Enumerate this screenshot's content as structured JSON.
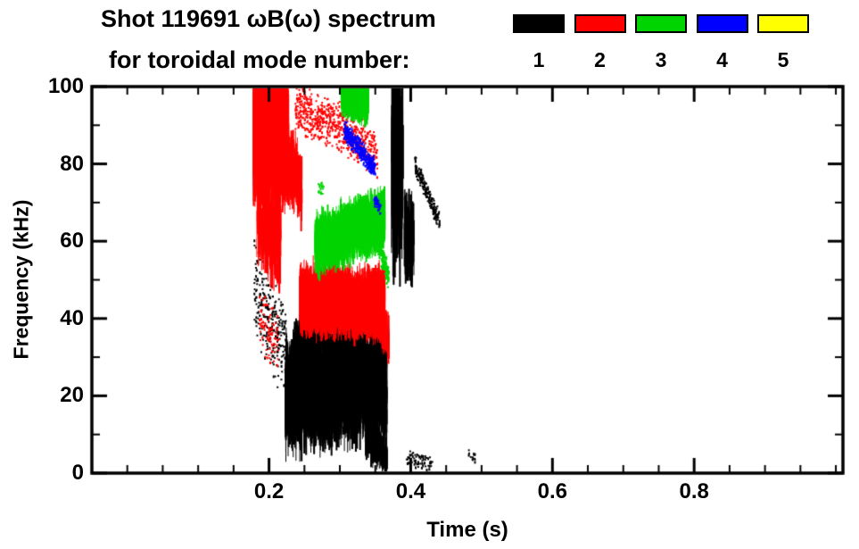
{
  "chart_data": {
    "type": "scatter",
    "title": "Shot 119691 ωB(ω) spectrum",
    "subtitle": "for toroidal mode number:",
    "xlabel": "Time (s)",
    "ylabel": "Frequency (kHz)",
    "xlim": [
      -0.05,
      1.01
    ],
    "ylim": [
      0,
      100
    ],
    "xticks": [
      {
        "v": 0.2,
        "label": "0.2"
      },
      {
        "v": 0.4,
        "label": "0.4"
      },
      {
        "v": 0.6,
        "label": "0.6"
      },
      {
        "v": 0.8,
        "label": "0.8"
      }
    ],
    "yticks": [
      {
        "v": 0,
        "label": "0"
      },
      {
        "v": 20,
        "label": "20"
      },
      {
        "v": 40,
        "label": "40"
      },
      {
        "v": 60,
        "label": "60"
      },
      {
        "v": 80,
        "label": "80"
      },
      {
        "v": 100,
        "label": "100"
      }
    ],
    "x_minor_step": 0.05,
    "y_minor_step": 10,
    "grid": false,
    "legend": {
      "position": "top-right",
      "entries": [
        {
          "mode": "1",
          "color": "#000000"
        },
        {
          "mode": "2",
          "color": "#ff0000"
        },
        {
          "mode": "3",
          "color": "#00d400"
        },
        {
          "mode": "4",
          "color": "#0000ff"
        },
        {
          "mode": "5",
          "color": "#ffff00"
        }
      ]
    },
    "series": [
      {
        "name": "n=1",
        "color": "#000000",
        "clusters": [
          {
            "t": [
              0.222,
              0.365
            ],
            "f": [
              20,
              24
            ],
            "spread": 13,
            "n": 3200,
            "shape": "streaks",
            "len": [
              2,
              12
            ]
          },
          {
            "t": [
              0.23,
              0.33
            ],
            "f": [
              33,
              36
            ],
            "spread": 7,
            "n": 350,
            "shape": "streaks",
            "len": [
              2,
              9
            ]
          },
          {
            "t": [
              0.178,
              0.225
            ],
            "f": [
              48,
              30
            ],
            "spread": 14,
            "n": 260,
            "shape": "dots"
          },
          {
            "t": [
              0.335,
              0.366
            ],
            "f": [
              10,
              4
            ],
            "spread": 5,
            "n": 260,
            "shape": "streaks",
            "len": [
              2,
              6
            ]
          },
          {
            "t": [
              0.372,
              0.388
            ],
            "f": [
              82,
              80
            ],
            "spread": 20,
            "n": 130,
            "shape": "streaks",
            "len": [
              10,
              42
            ]
          },
          {
            "t": [
              0.39,
              0.404
            ],
            "f": [
              62,
              58
            ],
            "spread": 9,
            "n": 80,
            "shape": "streaks",
            "len": [
              4,
              16
            ]
          },
          {
            "t": [
              0.405,
              0.44
            ],
            "f": [
              80,
              65
            ],
            "spread": 3,
            "n": 200,
            "shape": "dots"
          },
          {
            "t": [
              0.393,
              0.43
            ],
            "f": [
              4,
              3
            ],
            "spread": 2.5,
            "n": 70,
            "shape": "dots"
          },
          {
            "t": [
              0.48,
              0.49
            ],
            "f": [
              5,
              4
            ],
            "spread": 2,
            "n": 14,
            "shape": "dots"
          }
        ]
      },
      {
        "name": "n=2",
        "color": "#ff0000",
        "clusters": [
          {
            "t": [
              0.177,
              0.226
            ],
            "f": [
              88,
              86
            ],
            "spread": 13,
            "n": 2400,
            "shape": "streaks",
            "len": [
              3,
              16
            ]
          },
          {
            "t": [
              0.182,
              0.215
            ],
            "f": [
              65,
              60
            ],
            "spread": 11,
            "n": 300,
            "shape": "streaks",
            "len": [
              3,
              10
            ]
          },
          {
            "t": [
              0.185,
              0.212
            ],
            "f": [
              40,
              33
            ],
            "spread": 9,
            "n": 90,
            "shape": "dots"
          },
          {
            "t": [
              0.22,
              0.245
            ],
            "f": [
              82,
              74
            ],
            "spread": 8,
            "n": 220,
            "shape": "streaks",
            "len": [
              3,
              10
            ]
          },
          {
            "t": [
              0.236,
              0.29
            ],
            "f": [
              95,
              90
            ],
            "spread": 7,
            "n": 320,
            "shape": "dots"
          },
          {
            "t": [
              0.29,
              0.352
            ],
            "f": [
              91,
              83
            ],
            "spread": 7,
            "n": 330,
            "shape": "dots"
          },
          {
            "t": [
              0.242,
              0.362
            ],
            "f": [
              45,
              44
            ],
            "spread": 7,
            "n": 2800,
            "shape": "streaks",
            "len": [
              2,
              10
            ]
          },
          {
            "t": [
              0.35,
              0.368
            ],
            "f": [
              42,
              34
            ],
            "spread": 5,
            "n": 220,
            "shape": "streaks",
            "len": [
              2,
              7
            ]
          }
        ]
      },
      {
        "name": "n=3",
        "color": "#00d400",
        "clusters": [
          {
            "t": [
              0.264,
              0.362
            ],
            "f": [
              59,
              66
            ],
            "spread": 6,
            "n": 2000,
            "shape": "streaks",
            "len": [
              2,
              9
            ]
          },
          {
            "t": [
              0.352,
              0.368
            ],
            "f": [
              60,
              51
            ],
            "spread": 4,
            "n": 160,
            "shape": "dots"
          },
          {
            "t": [
              0.301,
              0.339
            ],
            "f": [
              99,
              96
            ],
            "spread": 5,
            "n": 550,
            "shape": "streaks",
            "len": [
              2,
              7
            ]
          },
          {
            "t": [
              0.268,
              0.276
            ],
            "f": [
              74,
              74
            ],
            "spread": 2,
            "n": 18,
            "shape": "dots"
          }
        ]
      },
      {
        "name": "n=4",
        "color": "#0000ff",
        "clusters": [
          {
            "t": [
              0.305,
              0.349
            ],
            "f": [
              89,
              79
            ],
            "spread": 3,
            "n": 380,
            "shape": "dots"
          },
          {
            "t": [
              0.347,
              0.356
            ],
            "f": [
              71,
              69
            ],
            "spread": 2,
            "n": 45,
            "shape": "dots"
          }
        ]
      },
      {
        "name": "n=5",
        "color": "#ffff00",
        "clusters": []
      }
    ]
  }
}
